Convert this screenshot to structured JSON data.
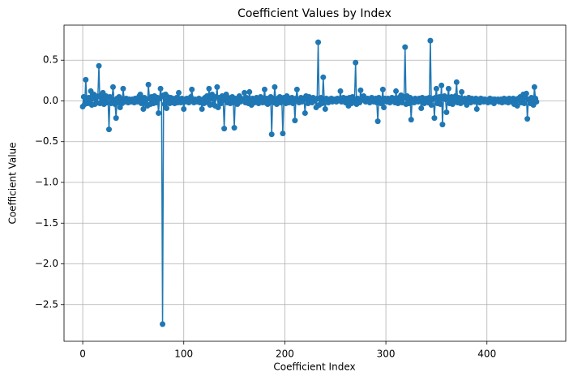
{
  "chart_data": {
    "type": "line",
    "title": "Coefficient Values by Index",
    "x_label": "Coefficient Index",
    "y_label": "Coefficient Value",
    "color": "#1f77b4",
    "grid": true,
    "markers": true,
    "xlim": [
      -18.5,
      478
    ],
    "ylim": [
      -2.95,
      0.93
    ],
    "xticks": [
      0,
      100,
      200,
      300,
      400
    ],
    "yticks": [
      {
        "value": -2.5,
        "label": "−2.5"
      },
      {
        "value": -2.0,
        "label": "−2.0"
      },
      {
        "value": -1.5,
        "label": "−1.5"
      },
      {
        "value": -1.0,
        "label": "−1.0"
      },
      {
        "value": -0.5,
        "label": "−0.5"
      },
      {
        "value": 0,
        "label": "0.0"
      },
      0.5
    ],
    "x": [
      0,
      1,
      2,
      3,
      4,
      5,
      6,
      7,
      8,
      9,
      10,
      11,
      12,
      13,
      14,
      15,
      16,
      17,
      18,
      19,
      20,
      21,
      22,
      23,
      24,
      25,
      26,
      27,
      28,
      29,
      30,
      31,
      32,
      33,
      34,
      35,
      36,
      37,
      38,
      39,
      40,
      41,
      42,
      43,
      44,
      45,
      46,
      47,
      48,
      49,
      50,
      51,
      52,
      53,
      54,
      55,
      56,
      57,
      58,
      59,
      60,
      61,
      62,
      63,
      64,
      65,
      66,
      67,
      68,
      69,
      70,
      71,
      72,
      73,
      74,
      75,
      76,
      77,
      78,
      79,
      80,
      81,
      82,
      83,
      84,
      85,
      86,
      87,
      88,
      89,
      90,
      91,
      92,
      93,
      94,
      95,
      96,
      97,
      98,
      99,
      100,
      101,
      102,
      103,
      104,
      105,
      106,
      107,
      108,
      109,
      110,
      111,
      112,
      113,
      114,
      115,
      116,
      117,
      118,
      119,
      120,
      121,
      122,
      123,
      124,
      125,
      126,
      127,
      128,
      129,
      130,
      131,
      132,
      133,
      134,
      135,
      136,
      137,
      138,
      139,
      140,
      141,
      142,
      143,
      144,
      145,
      146,
      147,
      148,
      149,
      150,
      151,
      152,
      153,
      154,
      155,
      156,
      157,
      158,
      159,
      160,
      161,
      162,
      163,
      164,
      165,
      166,
      167,
      168,
      169,
      170,
      171,
      172,
      173,
      174,
      175,
      176,
      177,
      178,
      179,
      180,
      181,
      182,
      183,
      184,
      185,
      186,
      187,
      188,
      189,
      190,
      191,
      192,
      193,
      194,
      195,
      196,
      197,
      198,
      199,
      200,
      201,
      202,
      203,
      204,
      205,
      206,
      207,
      208,
      209,
      210,
      211,
      212,
      213,
      214,
      215,
      216,
      217,
      218,
      219,
      220,
      221,
      222,
      223,
      224,
      225,
      226,
      227,
      228,
      229,
      230,
      231,
      232,
      233,
      234,
      235,
      236,
      237,
      238,
      239,
      240,
      241,
      242,
      243,
      244,
      245,
      246,
      247,
      248,
      249,
      250,
      251,
      252,
      253,
      254,
      255,
      256,
      257,
      258,
      259,
      260,
      261,
      262,
      263,
      264,
      265,
      266,
      267,
      268,
      269,
      270,
      271,
      272,
      273,
      274,
      275,
      276,
      277,
      278,
      279,
      280,
      281,
      282,
      283,
      284,
      285,
      286,
      287,
      288,
      289,
      290,
      291,
      292,
      293,
      294,
      295,
      296,
      297,
      298,
      299,
      300,
      301,
      302,
      303,
      304,
      305,
      306,
      307,
      308,
      309,
      310,
      311,
      312,
      313,
      314,
      315,
      316,
      317,
      318,
      319,
      320,
      321,
      322,
      323,
      324,
      325,
      326,
      327,
      328,
      329,
      330,
      331,
      332,
      333,
      334,
      335,
      336,
      337,
      338,
      339,
      340,
      341,
      342,
      343,
      344,
      345,
      346,
      347,
      348,
      349,
      350,
      351,
      352,
      353,
      354,
      355,
      356,
      357,
      358,
      359,
      360,
      361,
      362,
      363,
      364,
      365,
      366,
      367,
      368,
      369,
      370,
      371,
      372,
      373,
      374,
      375,
      376,
      377,
      378,
      379,
      380,
      381,
      382,
      383,
      384,
      385,
      386,
      387,
      388,
      389,
      390,
      391,
      392,
      393,
      394,
      395,
      396,
      397,
      398,
      399,
      400,
      401,
      402,
      403,
      404,
      405,
      406,
      407,
      408,
      409,
      410,
      411,
      412,
      413,
      414,
      415,
      416,
      417,
      418,
      419,
      420,
      421,
      422,
      423,
      424,
      425,
      426,
      427,
      428,
      429,
      430,
      431,
      432,
      433,
      434,
      435,
      436,
      437,
      438,
      439,
      440,
      441,
      442,
      443,
      444,
      445,
      446,
      447,
      448,
      449
    ],
    "values": [
      -0.07,
      0.05,
      -0.04,
      0.26,
      0.02,
      -0.03,
      0.04,
      -0.02,
      0.12,
      -0.05,
      0.03,
      0.08,
      -0.04,
      0.06,
      -0.02,
      0.05,
      0.43,
      -0.03,
      0.07,
      0.02,
      0.1,
      -0.04,
      0.03,
      0.06,
      -0.02,
      0.04,
      -0.35,
      0.05,
      -0.03,
      0.02,
      0.17,
      0.01,
      -0.04,
      -0.21,
      0.03,
      -0.02,
      0.05,
      -0.08,
      0.02,
      -0.03,
      0.15,
      0.02,
      -0.01,
      0.03,
      0.01,
      -0.02,
      0.02,
      0.01,
      -0.01,
      0.02,
      0.01,
      -0.02,
      0.03,
      0.01,
      -0.01,
      0.02,
      0.06,
      0.08,
      -0.03,
      0.02,
      -0.1,
      0.04,
      -0.03,
      0.02,
      -0.06,
      0.2,
      0.03,
      -0.04,
      0.05,
      0.02,
      -0.03,
      0.06,
      0.02,
      -0.02,
      0.04,
      -0.15,
      0.03,
      0.15,
      0.05,
      -2.74,
      0.07,
      -0.04,
      0.08,
      -0.09,
      0.05,
      0.02,
      -0.03,
      0.04,
      -0.02,
      0.03,
      0.01,
      -0.03,
      0.02,
      0.04,
      -0.02,
      0.1,
      0.01,
      -0.02,
      0.03,
      0.01,
      -0.1,
      0.02,
      -0.01,
      0.03,
      0.01,
      -0.02,
      0.02,
      0.05,
      0.14,
      0.01,
      -0.02,
      0.02,
      0.01,
      -0.01,
      0.02,
      0.03,
      -0.02,
      0.01,
      -0.1,
      0.02,
      -0.03,
      0.04,
      0.01,
      0.06,
      -0.02,
      0.15,
      -0.05,
      0.03,
      0.08,
      -0.04,
      0.02,
      -0.06,
      0.05,
      0.17,
      -0.08,
      0.04,
      0.02,
      -0.03,
      0.06,
      0.01,
      -0.34,
      0.03,
      0.08,
      -0.02,
      0.04,
      0.01,
      -0.03,
      0.02,
      0.05,
      -0.02,
      -0.33,
      0.03,
      0.01,
      -0.04,
      0.02,
      0.06,
      -0.01,
      0.03,
      0.02,
      0.01,
      0.1,
      -0.02,
      0.04,
      0.03,
      -0.03,
      0.11,
      0.02,
      -0.05,
      0.03,
      0.01,
      -0.02,
      0.02,
      0.04,
      0.01,
      -0.03,
      0.02,
      0.05,
      0.01,
      -0.02,
      0.03,
      0.14,
      -0.02,
      0.03,
      -0.04,
      0.02,
      0.01,
      0.05,
      -0.41,
      0.03,
      -0.02,
      0.17,
      0.02,
      -0.04,
      0.03,
      0.01,
      0.05,
      -0.02,
      0.03,
      -0.4,
      0.04,
      0.02,
      -0.03,
      0.06,
      0.01,
      -0.02,
      0.03,
      0.02,
      0.04,
      -0.03,
      0.02,
      -0.24,
      0.03,
      0.14,
      0.01,
      -0.02,
      0.02,
      0.04,
      -0.01,
      0.03,
      0.02,
      -0.15,
      0.06,
      0.02,
      -0.03,
      0.05,
      0.01,
      0.03,
      -0.02,
      0.04,
      0.02,
      0.01,
      -0.08,
      0.03,
      0.72,
      -0.05,
      0.02,
      0.04,
      -0.03,
      0.29,
      0.02,
      -0.1,
      0.03,
      0.01,
      -0.02,
      0.02,
      0.01,
      0.03,
      -0.01,
      0.02,
      0.01,
      0.02,
      -0.01,
      0.03,
      0.01,
      0.02,
      0.12,
      -0.01,
      0.02,
      0.04,
      0.01,
      -0.02,
      0.03,
      0.01,
      -0.06,
      0.04,
      0.02,
      -0.03,
      0.05,
      0.01,
      0.02,
      0.47,
      -0.04,
      0.03,
      0.02,
      -0.02,
      0.13,
      0.01,
      0.03,
      0.06,
      0.02,
      -0.01,
      0.02,
      0.03,
      0.01,
      -0.02,
      0.02,
      0.04,
      0.01,
      -0.01,
      0.02,
      0.03,
      -0.02,
      -0.25,
      0.04,
      0.01,
      -0.03,
      0.02,
      0.14,
      -0.08,
      0.03,
      0.02,
      -0.01,
      0.03,
      0.01,
      -0.02,
      0.02,
      0.04,
      0.01,
      0.03,
      -0.02,
      0.12,
      0.02,
      -0.03,
      0.04,
      0.01,
      0.07,
      -0.02,
      0.03,
      0.05,
      0.66,
      -0.04,
      0.06,
      0.02,
      -0.03,
      0.04,
      -0.23,
      0.02,
      0.01,
      -0.02,
      0.03,
      0.02,
      0.01,
      -0.01,
      0.03,
      0.02,
      -0.09,
      0.04,
      0.01,
      -0.03,
      0.02,
      0.03,
      0.01,
      -0.02,
      0.04,
      0.74,
      -0.05,
      0.02,
      0.03,
      -0.21,
      0.04,
      0.15,
      -0.03,
      0.02,
      0.05,
      -0.04,
      0.19,
      -0.29,
      0.03,
      0.06,
      0.02,
      -0.14,
      0.04,
      0.15,
      -0.03,
      0.02,
      0.05,
      -0.04,
      0.03,
      0.01,
      0.06,
      0.23,
      -0.02,
      0.04,
      0.01,
      -0.03,
      0.11,
      0.02,
      -0.01,
      0.03,
      0.02,
      -0.05,
      0.02,
      0.04,
      0.01,
      -0.02,
      0.03,
      0.01,
      0.02,
      -0.01,
      0.03,
      -0.1,
      0.02,
      0.01,
      -0.02,
      0.03,
      0.01,
      0.02,
      -0.01,
      0.02,
      0.01,
      0.01,
      -0.02,
      0.02,
      0.03,
      -0.01,
      0.01,
      0.02,
      -0.03,
      0.02,
      0.01,
      0.01,
      0.02,
      -0.01,
      0.01,
      0.02,
      -0.02,
      0.01,
      0.03,
      -0.01,
      0.02,
      0.01,
      -0.02,
      0.03,
      0.01,
      -0.01,
      0.02,
      0.03,
      -0.04,
      0.02,
      0.01,
      -0.06,
      0.03,
      0.01,
      0.05,
      -0.02,
      0.02,
      0.08,
      -0.03,
      0.04,
      0.09,
      -0.22,
      0.02,
      0.01,
      -0.03,
      0.04,
      0.02,
      -0.05,
      0.17,
      0.03,
      -0.01
    ]
  }
}
